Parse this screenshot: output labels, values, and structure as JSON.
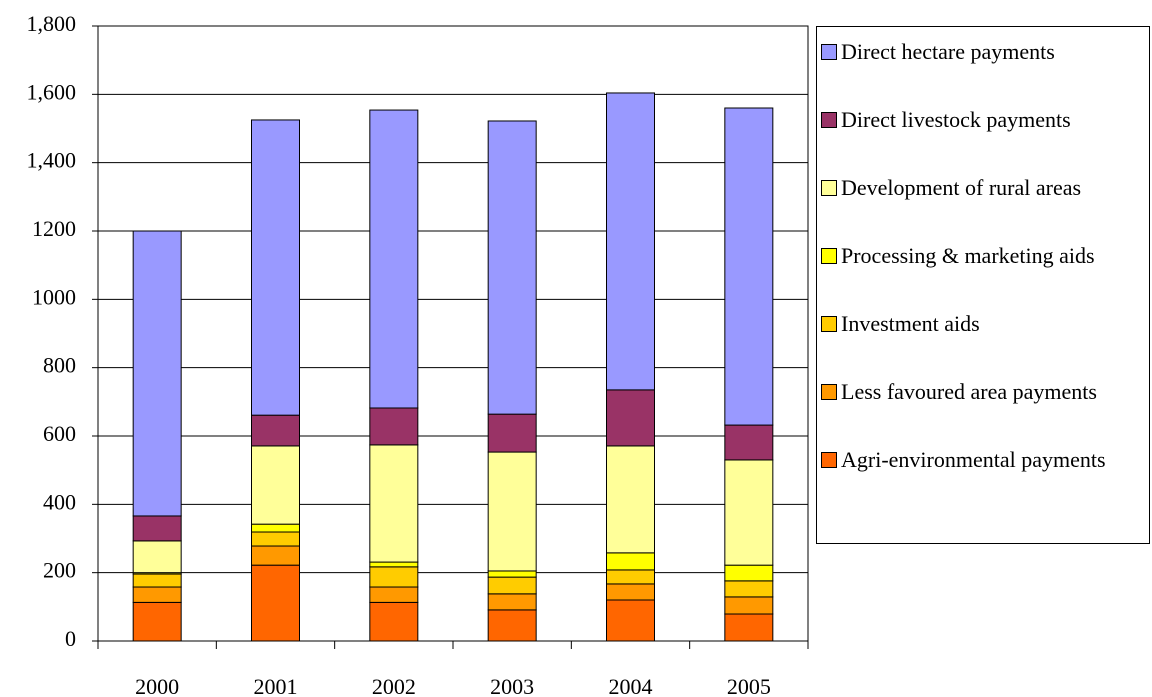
{
  "chart_data": {
    "type": "stacked-bar",
    "categories": [
      "2000",
      "2001",
      "2002",
      "2003",
      "2004",
      "2005"
    ],
    "series": [
      {
        "name": "Agri-environmental payments",
        "color": "#ff6600",
        "values": [
          113,
          222,
          113,
          91,
          120,
          79
        ]
      },
      {
        "name": "Less favoured area payments",
        "color": "#ff9900",
        "values": [
          45,
          56,
          45,
          47,
          47,
          50
        ]
      },
      {
        "name": "Investment aids",
        "color": "#ffcc00",
        "values": [
          38,
          41,
          59,
          49,
          41,
          47
        ]
      },
      {
        "name": "Processing & marketing aids",
        "color": "#ffff00",
        "values": [
          4,
          23,
          14,
          18,
          50,
          46
        ]
      },
      {
        "name": "Development of rural areas",
        "color": "#ffff99",
        "values": [
          93,
          229,
          343,
          348,
          313,
          308
        ]
      },
      {
        "name": "Direct livestock payments",
        "color": "#993366",
        "values": [
          73,
          90,
          108,
          111,
          164,
          102
        ]
      },
      {
        "name": "Direct hectare payments",
        "color": "#9999ff",
        "values": [
          834,
          864,
          872,
          858,
          869,
          928
        ]
      }
    ],
    "ylim": [
      0,
      1800
    ],
    "yticks": [
      0,
      200,
      400,
      600,
      800,
      1000,
      1200,
      {
        "value": 1400,
        "label": "1,400"
      },
      {
        "value": 1600,
        "label": "1,600"
      },
      {
        "value": 1800,
        "label": "1,800"
      }
    ],
    "grid": true,
    "legend": "right"
  }
}
